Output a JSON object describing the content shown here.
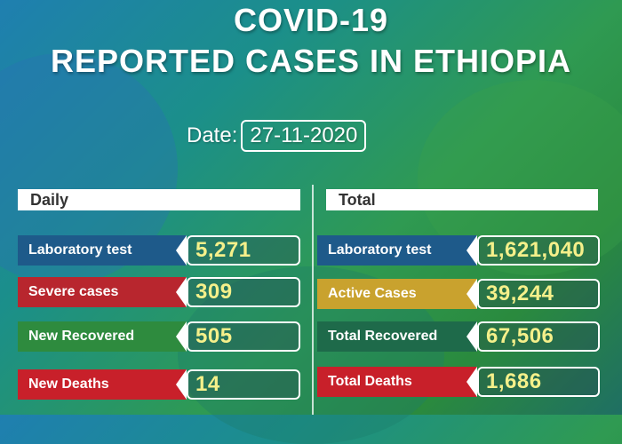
{
  "title_line1": "COVID-19",
  "title_line2": "REPORTED CASES IN ETHIOPIA",
  "date_label": "Date:",
  "date_value": "27-11-2020",
  "daily": {
    "header": "Daily",
    "rows": [
      {
        "label": "Laboratory test",
        "value": "5,271",
        "color": "#1e5a8a"
      },
      {
        "label": "Severe cases",
        "value": "309",
        "color": "#b8262e"
      },
      {
        "label": "New Recovered",
        "value": "505",
        "color": "#2e8b3e"
      },
      {
        "label": "New Deaths",
        "value": "14",
        "color": "#c8202a"
      }
    ]
  },
  "total": {
    "header": "Total",
    "rows": [
      {
        "label": "Laboratory test",
        "value": "1,621,040",
        "color": "#1e5a8a"
      },
      {
        "label": "Active Cases",
        "value": "39,244",
        "color": "#c9a22e"
      },
      {
        "label": "Total Recovered",
        "value": "67,506",
        "color": "#1e6a4a"
      },
      {
        "label": "Total Deaths",
        "value": "1,686",
        "color": "#c8202a"
      }
    ]
  }
}
